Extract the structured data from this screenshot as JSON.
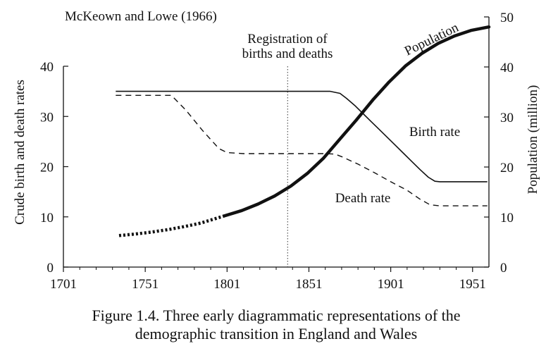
{
  "chart_data": {
    "type": "line",
    "source_note": "McKeown and Lowe (1966)",
    "caption": [
      "Figure 1.4. Three early diagrammatic representations of the",
      "demographic transition in England and Wales"
    ],
    "xlim": [
      1701,
      1961
    ],
    "x_ticks": [
      1701,
      1751,
      1801,
      1851,
      1901,
      1951
    ],
    "y_left": {
      "label": "Crude birth and death rates",
      "lim": [
        0,
        40
      ],
      "ticks": [
        0,
        10,
        20,
        30,
        40
      ]
    },
    "y_right": {
      "label": "Population (million)",
      "lim": [
        0,
        50
      ],
      "ticks": [
        0,
        10,
        20,
        30,
        40,
        50
      ]
    },
    "vertical_marker": {
      "x": 1838,
      "label_lines": [
        "Registration of",
        "births and deaths"
      ]
    },
    "series": [
      {
        "name": "Birth rate",
        "axis": "left",
        "style": "solid",
        "x": [
          1733,
          1864,
          1870,
          1874,
          1879,
          1884,
          1889,
          1894,
          1899,
          1904,
          1909,
          1914,
          1919,
          1924,
          1928,
          1931,
          1936,
          1941,
          1946,
          1951,
          1956,
          1960
        ],
        "y": [
          35.0,
          35.0,
          34.6,
          33.6,
          32.2,
          30.6,
          29.0,
          27.4,
          25.8,
          24.2,
          22.6,
          21.0,
          19.4,
          17.9,
          17.1,
          17.0,
          17.0,
          17.0,
          17.0,
          17.0,
          17.0,
          17.0
        ]
      },
      {
        "name": "Death rate",
        "axis": "left",
        "style": "dashed",
        "x": [
          1733,
          1767,
          1776,
          1786,
          1796,
          1801,
          1811,
          1821,
          1831,
          1841,
          1851,
          1861,
          1867,
          1871,
          1881,
          1891,
          1901,
          1911,
          1919,
          1925,
          1931,
          1941,
          1951,
          1960
        ],
        "y": [
          34.2,
          34.2,
          31.2,
          27.2,
          23.6,
          22.8,
          22.6,
          22.6,
          22.6,
          22.6,
          22.6,
          22.6,
          22.5,
          22.0,
          20.5,
          18.8,
          17.0,
          15.3,
          13.5,
          12.4,
          12.2,
          12.2,
          12.2,
          12.2
        ]
      },
      {
        "name": "Population",
        "axis": "right",
        "style": "thick",
        "dotted_until": 1800,
        "x": [
          1735,
          1745,
          1755,
          1765,
          1775,
          1785,
          1800,
          1810,
          1820,
          1830,
          1840,
          1850,
          1860,
          1870,
          1880,
          1890,
          1900,
          1910,
          1920,
          1930,
          1940,
          1950,
          1961
        ],
        "y": [
          6.3,
          6.6,
          7.0,
          7.5,
          8.1,
          8.8,
          10.3,
          11.3,
          12.6,
          14.2,
          16.2,
          18.7,
          21.8,
          25.6,
          29.4,
          33.4,
          37.0,
          40.2,
          42.7,
          44.7,
          46.2,
          47.3,
          48.0
        ]
      }
    ]
  }
}
